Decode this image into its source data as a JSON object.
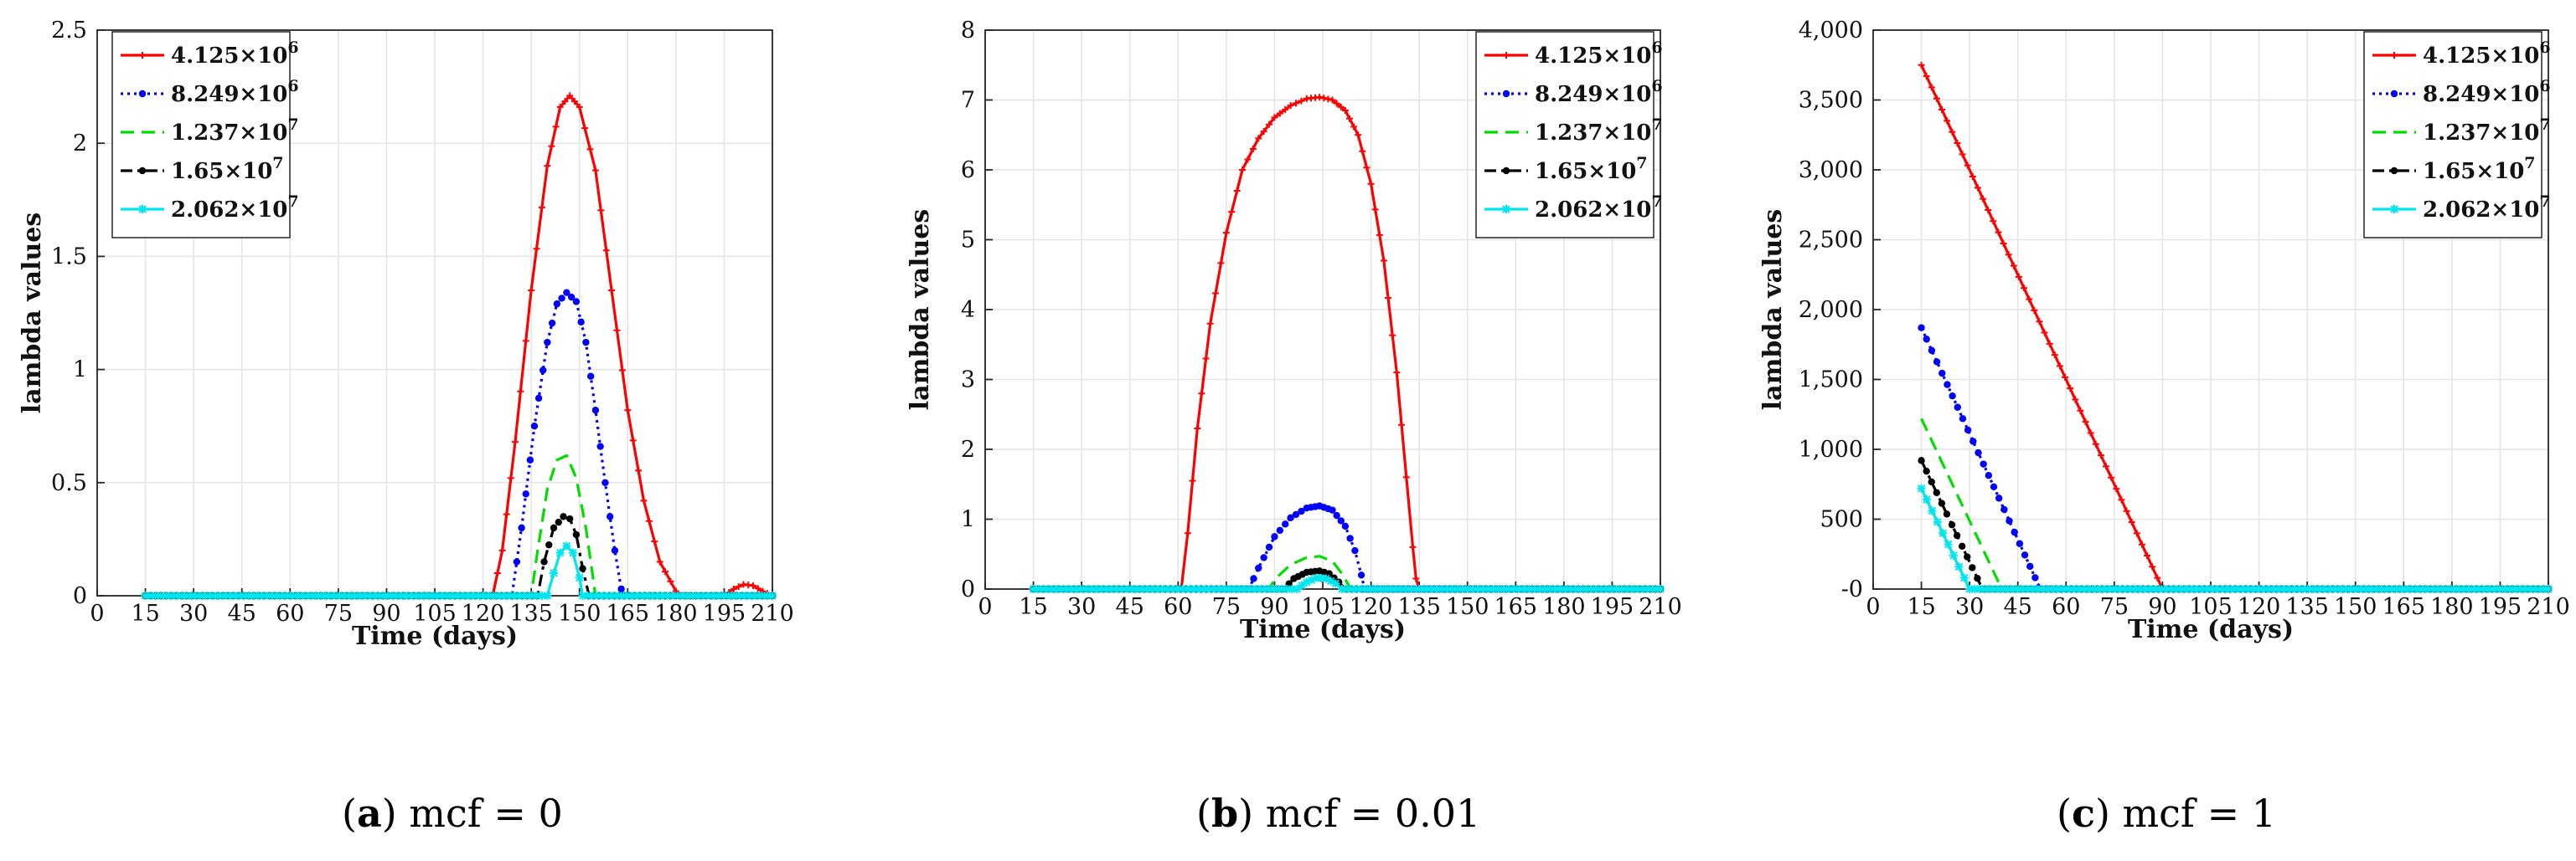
{
  "chart_data": [
    {
      "type": "line",
      "caption": {
        "letter": "a",
        "text": "mcf = 0"
      },
      "title": "",
      "xlabel": "Time (days)",
      "ylabel": "lambda values",
      "xlim": [
        0,
        210
      ],
      "ylim": [
        0,
        2.5
      ],
      "xticks": [
        0,
        15,
        30,
        45,
        60,
        75,
        90,
        105,
        120,
        135,
        150,
        165,
        180,
        195,
        210
      ],
      "xtick_labels": [
        "0",
        "15",
        "30",
        "45",
        "60",
        "75",
        "90",
        "105",
        "120",
        "135",
        "150",
        "165",
        "180",
        "195",
        "210"
      ],
      "yticks": [
        0,
        0.5,
        1,
        1.5,
        2,
        2.5
      ],
      "ytick_labels": [
        "0",
        "0.5",
        "1",
        "1.5",
        "2",
        "2.5"
      ],
      "grid": true,
      "legend_position": "top-left",
      "series": [
        {
          "name": "4.125×10^6",
          "label_base": "4.125×10",
          "label_exp": "6",
          "color": "#ff0000",
          "dash": "solid",
          "marker": "plus",
          "x": [
            15,
            60,
            123,
            126,
            130,
            135,
            140,
            144,
            147,
            150,
            155,
            160,
            165,
            170,
            175,
            180,
            181,
            195,
            198,
            201,
            204,
            207,
            210
          ],
          "y": [
            0,
            0,
            0,
            0.2,
            0.68,
            1.35,
            1.9,
            2.16,
            2.21,
            2.16,
            1.88,
            1.35,
            0.82,
            0.42,
            0.15,
            0.02,
            0,
            0,
            0.03,
            0.05,
            0.045,
            0.02,
            0
          ]
        },
        {
          "name": "8.249×10^6",
          "label_base": "8.249×10",
          "label_exp": "6",
          "color": "#0000ff",
          "dash": "dotted",
          "marker": "dot",
          "x": [
            15,
            60,
            129,
            132,
            136,
            140,
            143,
            146,
            149,
            152,
            155,
            158,
            161,
            163,
            164,
            210
          ],
          "y": [
            0,
            0,
            0,
            0.3,
            0.75,
            1.12,
            1.29,
            1.34,
            1.3,
            1.12,
            0.82,
            0.5,
            0.2,
            0.03,
            0,
            0
          ]
        },
        {
          "name": "1.237×10^7",
          "label_base": "1.237×10",
          "label_exp": "7",
          "color": "#00dd00",
          "dash": "dashed",
          "marker": "none",
          "x": [
            15,
            60,
            135,
            137,
            140,
            143,
            146,
            149,
            152,
            154,
            155,
            210
          ],
          "y": [
            0,
            0,
            0,
            0.2,
            0.47,
            0.6,
            0.62,
            0.52,
            0.3,
            0.1,
            0,
            0
          ]
        },
        {
          "name": "1.65×10^7",
          "label_base": "1.65×10",
          "label_exp": "7",
          "color": "#000000",
          "dash": "dashdot",
          "marker": "dot",
          "x": [
            15,
            60,
            137,
            139,
            142,
            145,
            147,
            149,
            151,
            153,
            210
          ],
          "y": [
            0,
            0,
            0,
            0.15,
            0.3,
            0.35,
            0.34,
            0.27,
            0.12,
            0,
            0
          ]
        },
        {
          "name": "2.062×10^7",
          "label_base": "2.062×10",
          "label_exp": "7",
          "color": "#00e5ee",
          "dash": "solid",
          "marker": "star",
          "x": [
            15,
            60,
            140,
            142,
            144,
            146,
            148,
            150,
            151,
            210
          ],
          "y": [
            0,
            0,
            0,
            0.1,
            0.19,
            0.22,
            0.19,
            0.08,
            0,
            0
          ]
        }
      ]
    },
    {
      "type": "line",
      "caption": {
        "letter": "b",
        "text": "mcf = 0.01"
      },
      "title": "",
      "xlabel": "Time (days)",
      "ylabel": "lambda values",
      "xlim": [
        0,
        210
      ],
      "ylim": [
        0,
        8
      ],
      "xticks": [
        0,
        15,
        30,
        45,
        60,
        75,
        90,
        105,
        120,
        135,
        150,
        165,
        180,
        195,
        210
      ],
      "xtick_labels": [
        "0",
        "15",
        "30",
        "45",
        "60",
        "75",
        "90",
        "105",
        "120",
        "135",
        "150",
        "165",
        "180",
        "195",
        "210"
      ],
      "yticks": [
        0,
        1,
        2,
        3,
        4,
        5,
        6,
        7,
        8
      ],
      "ytick_labels": [
        "0",
        "1",
        "2",
        "3",
        "4",
        "5",
        "6",
        "7",
        "8"
      ],
      "grid": true,
      "legend_position": "top-right",
      "series": [
        {
          "name": "4.125×10^6",
          "label_base": "4.125×10",
          "label_exp": "6",
          "color": "#ff0000",
          "dash": "solid",
          "marker": "plus",
          "x": [
            15,
            40,
            61,
            63,
            66,
            70,
            75,
            80,
            85,
            90,
            95,
            100,
            104,
            108,
            112,
            116,
            120,
            124,
            128,
            131,
            133,
            134,
            135,
            210
          ],
          "y": [
            0,
            0,
            0,
            0.8,
            2.3,
            3.8,
            5.1,
            6.0,
            6.45,
            6.75,
            6.92,
            7.02,
            7.04,
            7.0,
            6.85,
            6.5,
            5.8,
            4.7,
            3.1,
            1.6,
            0.6,
            0.15,
            0,
            0
          ]
        },
        {
          "name": "8.249×10^6",
          "label_base": "8.249×10",
          "label_exp": "6",
          "color": "#0000ff",
          "dash": "dotted",
          "marker": "dot",
          "x": [
            15,
            40,
            82,
            85,
            90,
            95,
            100,
            104,
            108,
            112,
            115,
            117,
            118,
            210
          ],
          "y": [
            0,
            0,
            0,
            0.3,
            0.75,
            1.02,
            1.16,
            1.19,
            1.13,
            0.9,
            0.55,
            0.2,
            0,
            0
          ]
        },
        {
          "name": "1.237×10^7",
          "label_base": "1.237×10",
          "label_exp": "7",
          "color": "#00dd00",
          "dash": "dashed",
          "marker": "none",
          "x": [
            15,
            40,
            88,
            91,
            95,
            100,
            104,
            108,
            111,
            113,
            114,
            210
          ],
          "y": [
            0,
            0,
            0,
            0.18,
            0.35,
            0.45,
            0.47,
            0.4,
            0.22,
            0.06,
            0,
            0
          ]
        },
        {
          "name": "1.65×10^7",
          "label_base": "1.65×10",
          "label_exp": "7",
          "color": "#000000",
          "dash": "dashdot",
          "marker": "dot",
          "x": [
            15,
            40,
            93,
            96,
            100,
            104,
            107,
            110,
            112,
            210
          ],
          "y": [
            0,
            0,
            0,
            0.15,
            0.24,
            0.26,
            0.22,
            0.1,
            0,
            0
          ]
        },
        {
          "name": "2.062×10^7",
          "label_base": "2.062×10",
          "label_exp": "7",
          "color": "#00e5ee",
          "dash": "solid",
          "marker": "star",
          "x": [
            15,
            40,
            97,
            100,
            103,
            106,
            109,
            111,
            210
          ],
          "y": [
            0,
            0,
            0,
            0.1,
            0.16,
            0.15,
            0.08,
            0,
            0
          ]
        }
      ]
    },
    {
      "type": "line",
      "caption": {
        "letter": "c",
        "text": "mcf = 1"
      },
      "title": "",
      "xlabel": "Time (days)",
      "ylabel": "lambda values",
      "xlim": [
        0,
        210
      ],
      "ylim": [
        0,
        4000
      ],
      "xticks": [
        0,
        15,
        30,
        45,
        60,
        75,
        90,
        105,
        120,
        135,
        150,
        165,
        180,
        195,
        210
      ],
      "xtick_labels": [
        "0",
        "15",
        "30",
        "45",
        "60",
        "75",
        "90",
        "105",
        "120",
        "135",
        "150",
        "165",
        "180",
        "195",
        "210"
      ],
      "yticks": [
        0,
        500,
        1000,
        1500,
        2000,
        2500,
        3000,
        3500,
        4000
      ],
      "ytick_labels": [
        "-0",
        "500",
        "1,000",
        "1,500",
        "2,000",
        "2,500",
        "3,000",
        "3,500",
        "4,000"
      ],
      "grid": true,
      "legend_position": "top-right",
      "series": [
        {
          "name": "4.125×10^6",
          "label_base": "4.125×10",
          "label_exp": "6",
          "color": "#ff0000",
          "dash": "solid",
          "marker": "plus",
          "x": [
            15,
            90,
            210
          ],
          "y": [
            3750,
            0,
            0
          ]
        },
        {
          "name": "8.249×10^6",
          "label_base": "8.249×10",
          "label_exp": "6",
          "color": "#0000ff",
          "dash": "dotted",
          "marker": "dot",
          "x": [
            15,
            52,
            210
          ],
          "y": [
            1870,
            0,
            0
          ]
        },
        {
          "name": "1.237×10^7",
          "label_base": "1.237×10",
          "label_exp": "7",
          "color": "#00dd00",
          "dash": "dashed",
          "marker": "none",
          "x": [
            15,
            40,
            210
          ],
          "y": [
            1220,
            0,
            0
          ]
        },
        {
          "name": "1.65×10^7",
          "label_base": "1.65×10",
          "label_exp": "7",
          "color": "#000000",
          "dash": "dashdot",
          "marker": "dot",
          "x": [
            15,
            34,
            210
          ],
          "y": [
            920,
            0,
            0
          ]
        },
        {
          "name": "2.062×10^7",
          "label_base": "2.062×10",
          "label_exp": "7",
          "color": "#00e5ee",
          "dash": "solid",
          "marker": "star",
          "x": [
            15,
            30,
            210
          ],
          "y": [
            720,
            0,
            0
          ]
        }
      ]
    }
  ]
}
